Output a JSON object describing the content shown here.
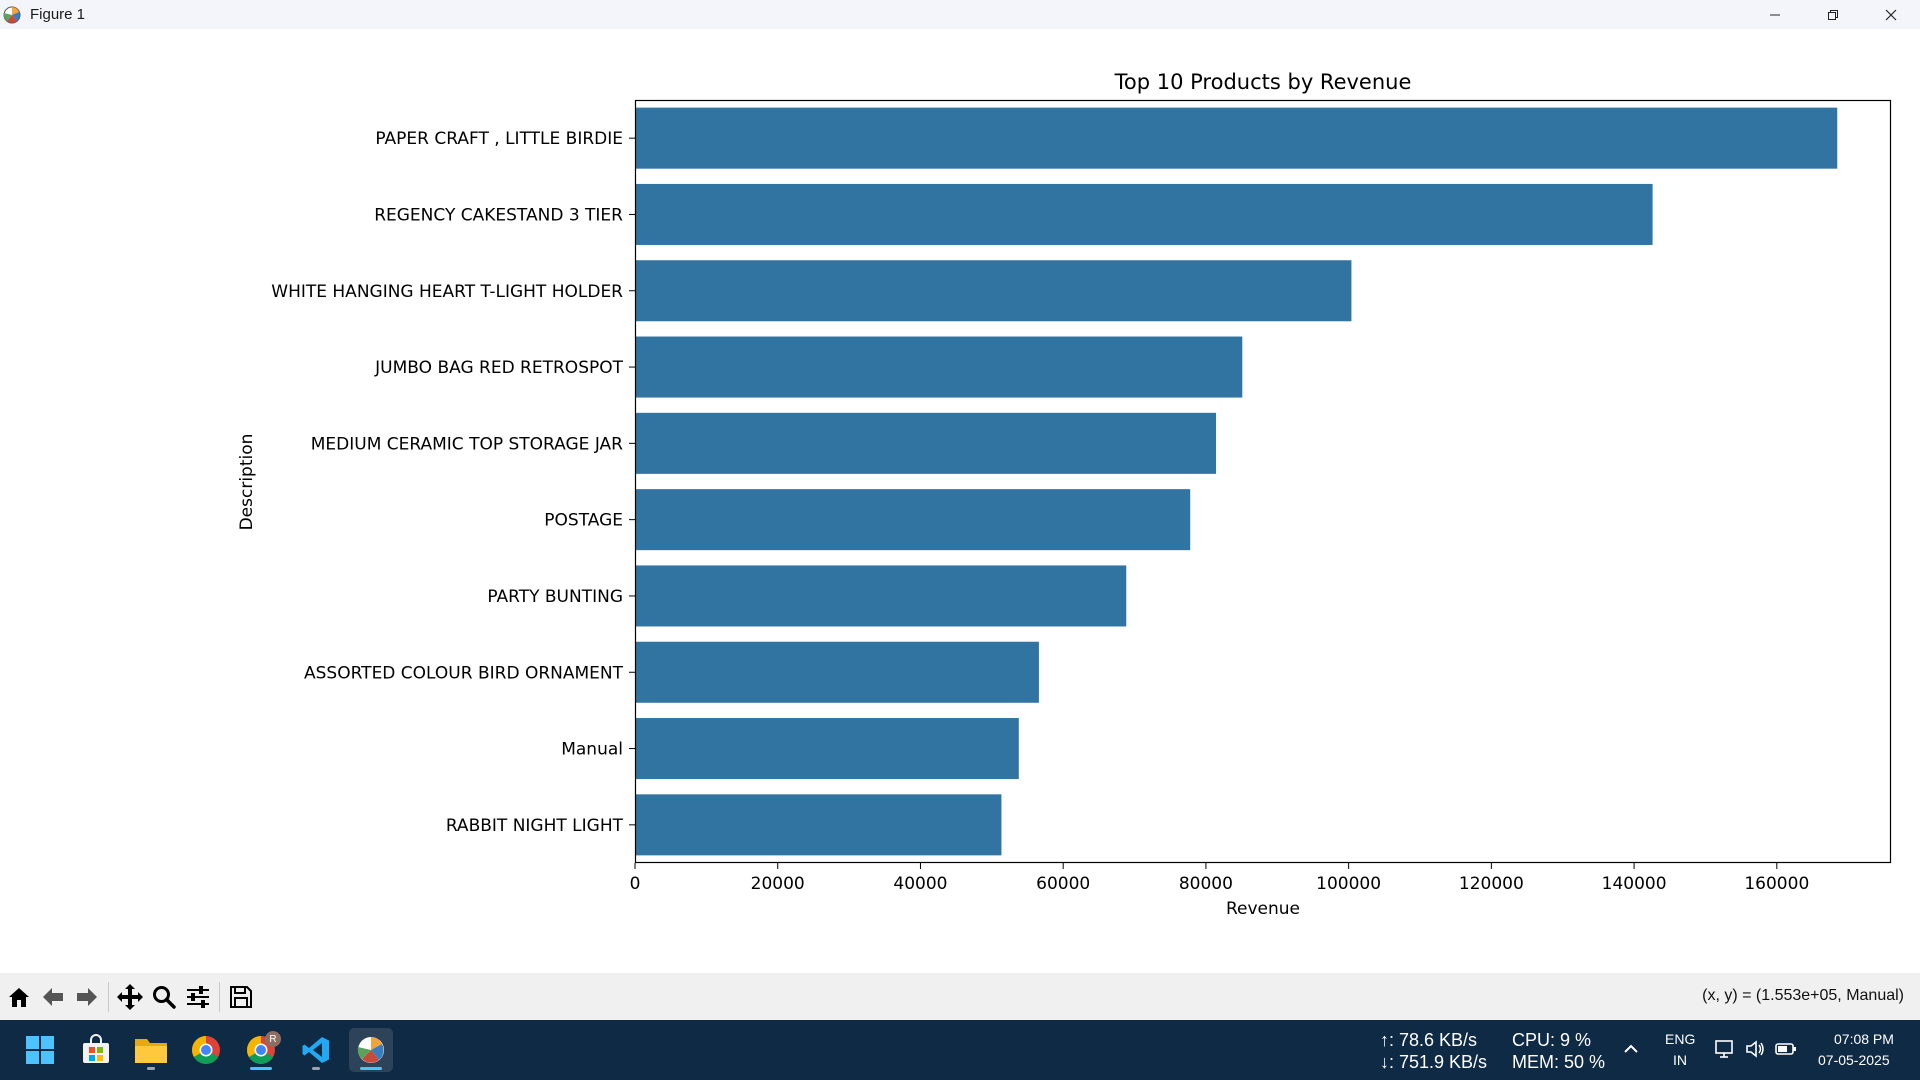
{
  "window": {
    "title": "Figure 1"
  },
  "chart_data": {
    "type": "bar",
    "orientation": "horizontal",
    "title": "Top 10 Products by Revenue",
    "xlabel": "Revenue",
    "ylabel": "Description",
    "xlim": [
      0,
      176000
    ],
    "xticks": [
      0,
      20000,
      40000,
      60000,
      80000,
      100000,
      120000,
      140000,
      160000
    ],
    "xtick_labels": [
      "0",
      "20000",
      "40000",
      "60000",
      "80000",
      "100000",
      "120000",
      "140000",
      "160000"
    ],
    "categories": [
      "PAPER CRAFT , LITTLE BIRDIE",
      "REGENCY CAKESTAND 3 TIER",
      "WHITE HANGING HEART T-LIGHT HOLDER",
      "JUMBO BAG RED RETROSPOT",
      "MEDIUM CERAMIC TOP STORAGE JAR",
      "POSTAGE",
      "PARTY BUNTING",
      "ASSORTED COLOUR BIRD ORNAMENT",
      "Manual",
      "RABBIT NIGHT LIGHT"
    ],
    "values": [
      168470,
      142590,
      100390,
      85100,
      81420,
      77800,
      68840,
      56600,
      53780,
      51350
    ],
    "bar_color": "#3274a1",
    "grid": false
  },
  "toolbar": {
    "buttons": [
      "home",
      "back",
      "forward",
      "pan",
      "zoom",
      "configure-subplots",
      "save"
    ],
    "coords_text": "(x, y) = (1.553e+05, Manual)"
  },
  "taskbar": {
    "net_up": "↑: 78.6 KB/s",
    "net_down": "↓: 751.9 KB/s",
    "cpu": "CPU: 9 %",
    "mem": "MEM: 50 %",
    "lang": "ENG",
    "region": "IN",
    "time": "07:08 PM",
    "date": "07-05-2025",
    "chrome_badge": "R"
  }
}
